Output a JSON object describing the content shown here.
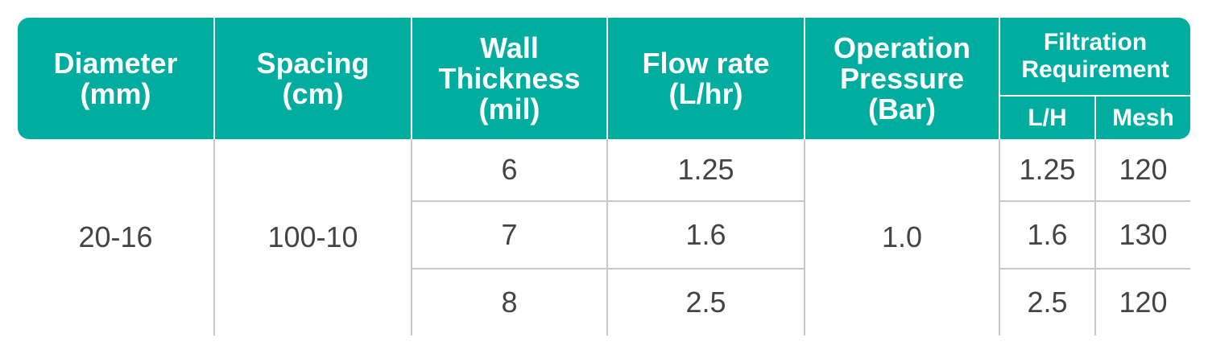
{
  "headers": {
    "diameter": "Diameter\n(mm)",
    "spacing": "Spacing\n(cm)",
    "wall_thickness": "Wall\nThickness\n(mil)",
    "flow_rate": "Flow rate\n(L/hr)",
    "operation_pressure": "Operation\nPressure\n(Bar)",
    "filtration": "Filtration\nRequirement",
    "lh": "L/H",
    "mesh": "Mesh"
  },
  "values": {
    "diameter": "20-16",
    "spacing": "100-10",
    "pressure": "1.0"
  },
  "rows": [
    {
      "wall": "6",
      "flow": "1.25",
      "lh": "1.25",
      "mesh": "120"
    },
    {
      "wall": "7",
      "flow": "1.6",
      "lh": "1.6",
      "mesh": "130"
    },
    {
      "wall": "8",
      "flow": "2.5",
      "lh": "2.5",
      "mesh": "120"
    }
  ],
  "colors": {
    "header_bg": "#00ad9f",
    "header_text": "#ffffff",
    "body_text": "#444444",
    "grid": "#c8c8c8"
  }
}
